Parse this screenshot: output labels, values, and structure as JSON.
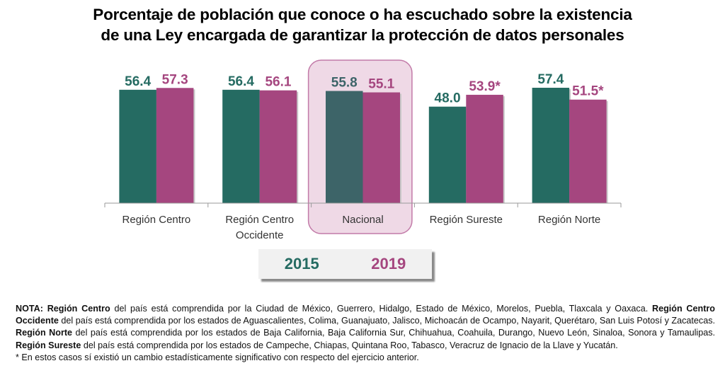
{
  "chart_data": {
    "type": "bar",
    "title": "Porcentaje de población que conoce o ha escuchado sobre la existencia de una Ley encargada de garantizar la protección de datos personales",
    "title_lines": [
      "Porcentaje de población que conoce o ha escuchado sobre la existencia",
      "de una Ley encargada de garantizar la protección de datos personales"
    ],
    "categories": [
      "Región Centro",
      "Región Centro Occidente",
      "Nacional",
      "Región Sureste",
      "Región Norte"
    ],
    "category_lines": [
      [
        "Región Centro"
      ],
      [
        "Región Centro",
        "Occidente"
      ],
      [
        "Nacional"
      ],
      [
        "Región Sureste"
      ],
      [
        "Región Norte"
      ]
    ],
    "series": [
      {
        "name": "2015",
        "values": [
          56.4,
          56.4,
          55.8,
          48.0,
          57.4
        ],
        "labels": [
          "56.4",
          "56.4",
          "55.8",
          "48.0",
          "57.4"
        ],
        "color": "#256b62"
      },
      {
        "name": "2019",
        "values": [
          57.3,
          56.1,
          55.1,
          53.9,
          51.5
        ],
        "labels": [
          "57.3",
          "56.1",
          "55.1",
          "53.9*",
          "51.5*"
        ],
        "color": "#a5467f"
      }
    ],
    "highlighted_category": "Nacional",
    "highlight_colors": {
      "series_2015": "#3d6468",
      "box_fill": "#efd9e6",
      "box_stroke": "#c27aa8"
    },
    "xlabel": "",
    "ylabel": "",
    "ylim": [
      0,
      100
    ],
    "grid": false,
    "legend": {
      "position": "bottom-center",
      "entries": [
        "2015",
        "2019"
      ]
    }
  },
  "note": {
    "lines": [
      [
        {
          "t": "NOTA: ",
          "b": true
        },
        {
          "t": "Región Centro",
          "b": true
        },
        {
          "t": " del país está comprendida por la Ciudad de México, Guerrero, Hidalgo, Estado de México, Morelos, Puebla, Tlaxcala y Oaxaca. ",
          "b": false
        },
        {
          "t": "Región Centro Occidente",
          "b": true
        },
        {
          "t": " del país está comprendida por los estados de Aguascalientes, Colima, Guanajuato, Jalisco, Michoacán de Ocampo, Nayarit, Querétaro, San Luis Potosí y Zacatecas. ",
          "b": false
        },
        {
          "t": "Región Norte",
          "b": true
        },
        {
          "t": " del país está comprendida por los estados de Baja California, Baja California Sur, Chihuahua, Coahuila, Durango, Nuevo León, Sinaloa, Sonora y Tamaulipas. ",
          "b": false
        },
        {
          "t": "Región Sureste",
          "b": true
        },
        {
          "t": " del país está comprendida por los estados de Campeche, Chiapas, Quintana Roo, Tabasco, Veracruz de Ignacio de la Llave y Yucatán.",
          "b": false
        }
      ],
      [
        {
          "t": "* En estos casos sí existió un cambio estadísticamente significativo con respecto del ejercicio anterior.",
          "b": false
        }
      ]
    ]
  }
}
